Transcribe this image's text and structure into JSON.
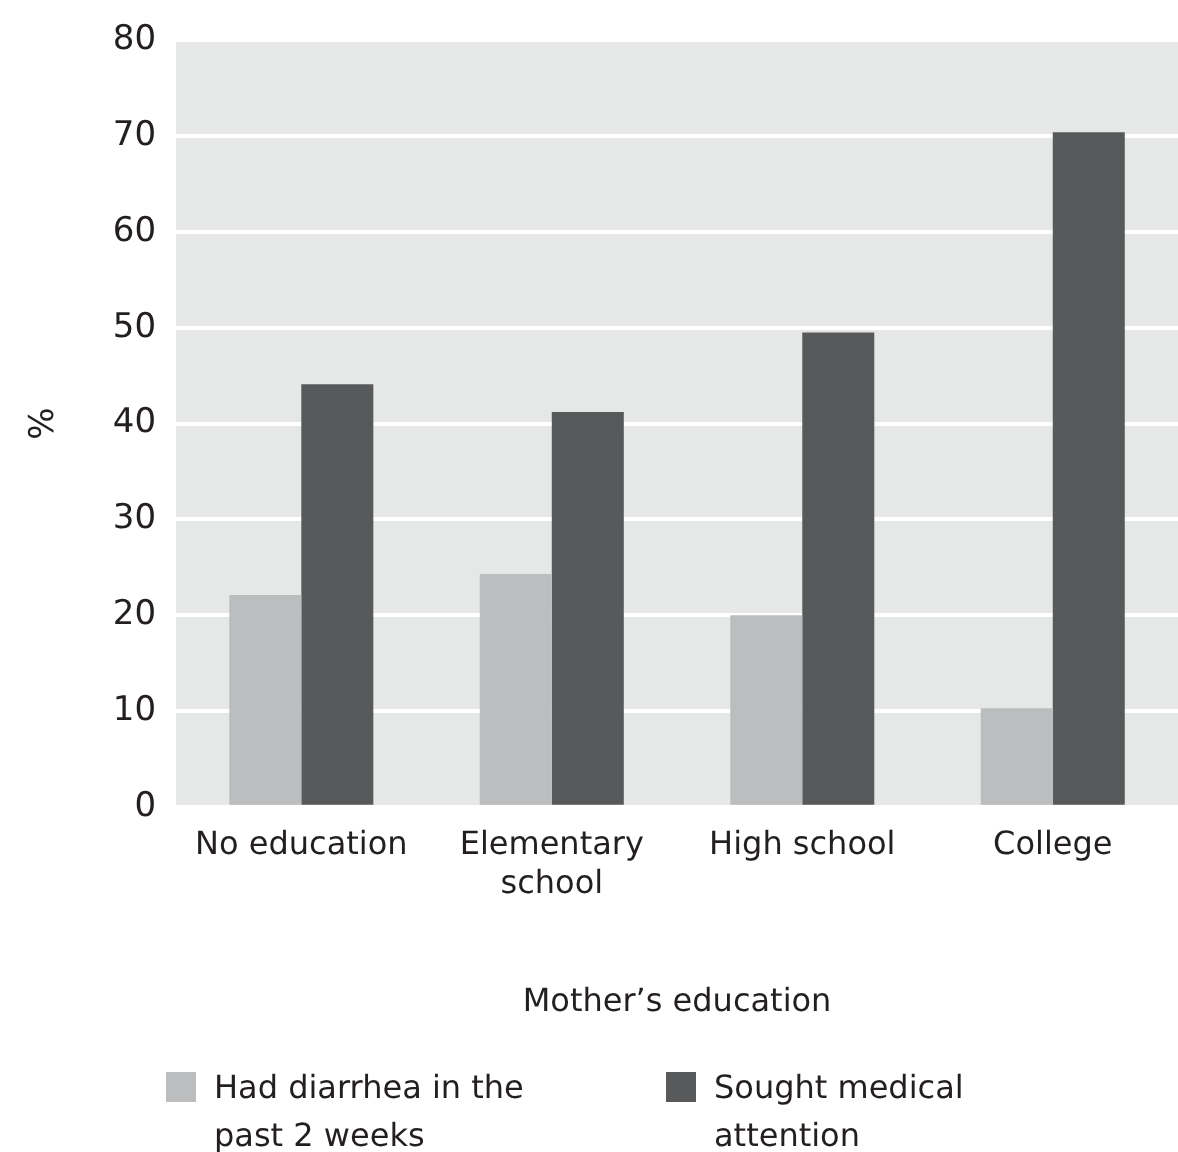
{
  "chart_data": {
    "type": "bar",
    "xlabel": "Mother’s education",
    "ylabel": "%",
    "categories": [
      "No education",
      "Elementary school",
      "High school",
      "College"
    ],
    "series": [
      {
        "name": "Had diarrhea in the past 2 weeks",
        "color": "#bcbdbf",
        "values": [
          22.1,
          24.3,
          20.0,
          10.3
        ]
      },
      {
        "name": "Sought medical attention",
        "color": "#58595b",
        "values": [
          44.1,
          41.2,
          49.5,
          70.4
        ]
      }
    ],
    "ylim": [
      0,
      80
    ],
    "yticks": [
      0,
      10,
      20,
      30,
      40,
      50,
      60,
      70,
      80
    ],
    "grid": "y",
    "legend": "bottom"
  }
}
